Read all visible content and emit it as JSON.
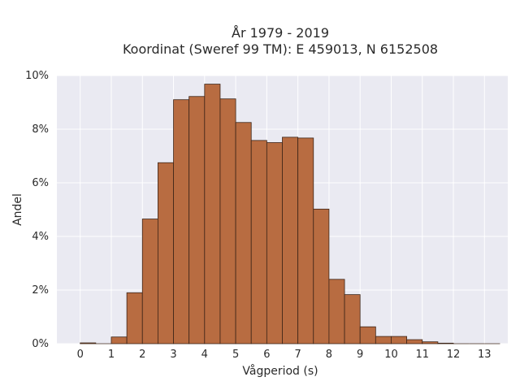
{
  "chart_data": {
    "type": "bar",
    "title": "År 1979 - 2019",
    "subtitle": "Koordinat (Sweref 99 TM): E 459013, N 6152508",
    "xlabel": "Vågperiod (s)",
    "ylabel": "Andel",
    "xlim": [
      -0.75,
      13.75
    ],
    "ylim": [
      0,
      10
    ],
    "x_ticks": [
      0,
      1,
      2,
      3,
      4,
      5,
      6,
      7,
      8,
      9,
      10,
      11,
      12,
      13
    ],
    "y_ticks": [
      0,
      2,
      4,
      6,
      8,
      10
    ],
    "y_tick_labels": [
      "0%",
      "2%",
      "4%",
      "6%",
      "8%",
      "10%"
    ],
    "bin_width": 0.5,
    "bin_starts": [
      0,
      0.5,
      1,
      1.5,
      2,
      2.5,
      3,
      3.5,
      4,
      4.5,
      5,
      5.5,
      6,
      6.5,
      7,
      7.5,
      8,
      8.5,
      9,
      9.5,
      10,
      10.5,
      11,
      11.5,
      12,
      12.5,
      13
    ],
    "values": [
      0.03,
      0,
      0.25,
      1.9,
      4.65,
      6.75,
      9.1,
      9.22,
      9.68,
      9.13,
      8.25,
      7.58,
      7.5,
      7.7,
      7.67,
      5.02,
      2.4,
      1.83,
      0.63,
      0.27,
      0.27,
      0.15,
      0.07,
      0.02,
      0,
      0,
      0
    ],
    "grid": true,
    "bar_color": "#b86c41",
    "bar_edge_color": "#3d2518",
    "plot_background": "#eaeaf2",
    "grid_color": "#ffffff"
  }
}
